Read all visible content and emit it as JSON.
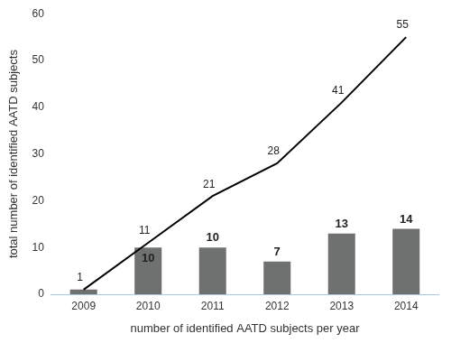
{
  "chart_data": {
    "type": "bar",
    "x_label": "number of identified AATD subjects per year",
    "y_label": "total number of identified AATD subjects",
    "categories": [
      "2009",
      "2010",
      "2011",
      "2012",
      "2013",
      "2014"
    ],
    "series": [
      {
        "type": "bar",
        "color": "#6f7170",
        "values": [
          1,
          10,
          10,
          7,
          13,
          14
        ],
        "value_labels": [
          null,
          "10",
          "10",
          "7",
          "13",
          "14"
        ]
      },
      {
        "type": "line",
        "color": "#000000",
        "marker": "none",
        "line_style": "solid",
        "values": [
          1,
          11,
          21,
          28,
          41,
          55
        ]
      }
    ],
    "ylim": [
      0,
      60
    ],
    "yticks": [
      0,
      10,
      20,
      30,
      40,
      50,
      60
    ],
    "grid": false,
    "data_labels": true
  }
}
